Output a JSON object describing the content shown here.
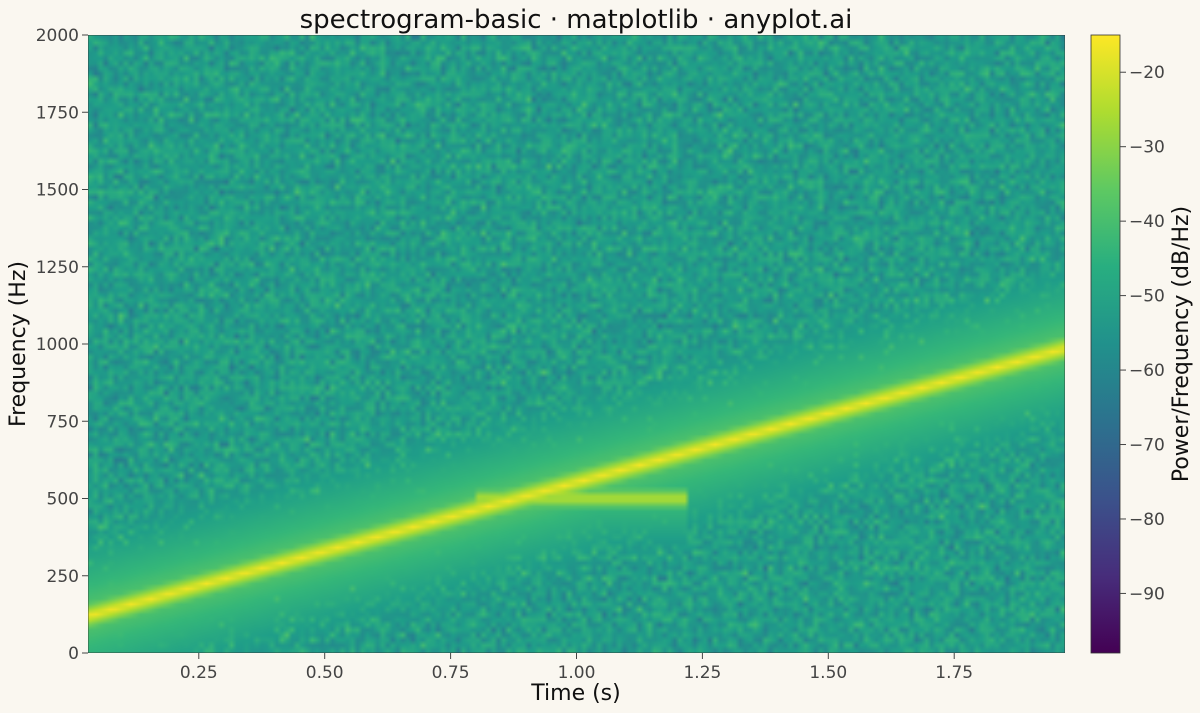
{
  "chart_data": {
    "type": "heatmap",
    "title": "spectrogram-basic · matplotlib · anyplot.ai",
    "xlabel": "Time (s)",
    "ylabel": "Frequency (Hz)",
    "colorbar_label": "Power/Frequency (dB/Hz)",
    "colormap": "viridis",
    "xlim": [
      0.03,
      1.97
    ],
    "ylim": [
      0,
      2000
    ],
    "clim": [
      -98,
      -15
    ],
    "x_ticks": [
      0.25,
      0.5,
      0.75,
      1.0,
      1.25,
      1.5,
      1.75
    ],
    "x_tick_labels": [
      "0.25",
      "0.50",
      "0.75",
      "1.00",
      "1.25",
      "1.50",
      "1.75"
    ],
    "y_ticks": [
      0,
      250,
      500,
      750,
      1000,
      1250,
      1500,
      1750,
      2000
    ],
    "y_tick_labels": [
      "0",
      "250",
      "500",
      "750",
      "1000",
      "1250",
      "1500",
      "1750",
      "2000"
    ],
    "colorbar_ticks": [
      -20,
      -30,
      -40,
      -50,
      -60,
      -70,
      -80,
      -90
    ],
    "colorbar_tick_labels": [
      "−20",
      "−30",
      "−40",
      "−50",
      "−60",
      "−70",
      "−80",
      "−90"
    ],
    "background_level_db": -52,
    "components": [
      {
        "kind": "linear chirp",
        "t_start": 0.03,
        "t_end": 1.97,
        "f_start": 120,
        "f_end": 985,
        "level_db": -16
      },
      {
        "kind": "tone burst",
        "t_start": 0.8,
        "t_end": 1.22,
        "f": 500,
        "level_db": -22
      }
    ],
    "grid": false
  }
}
